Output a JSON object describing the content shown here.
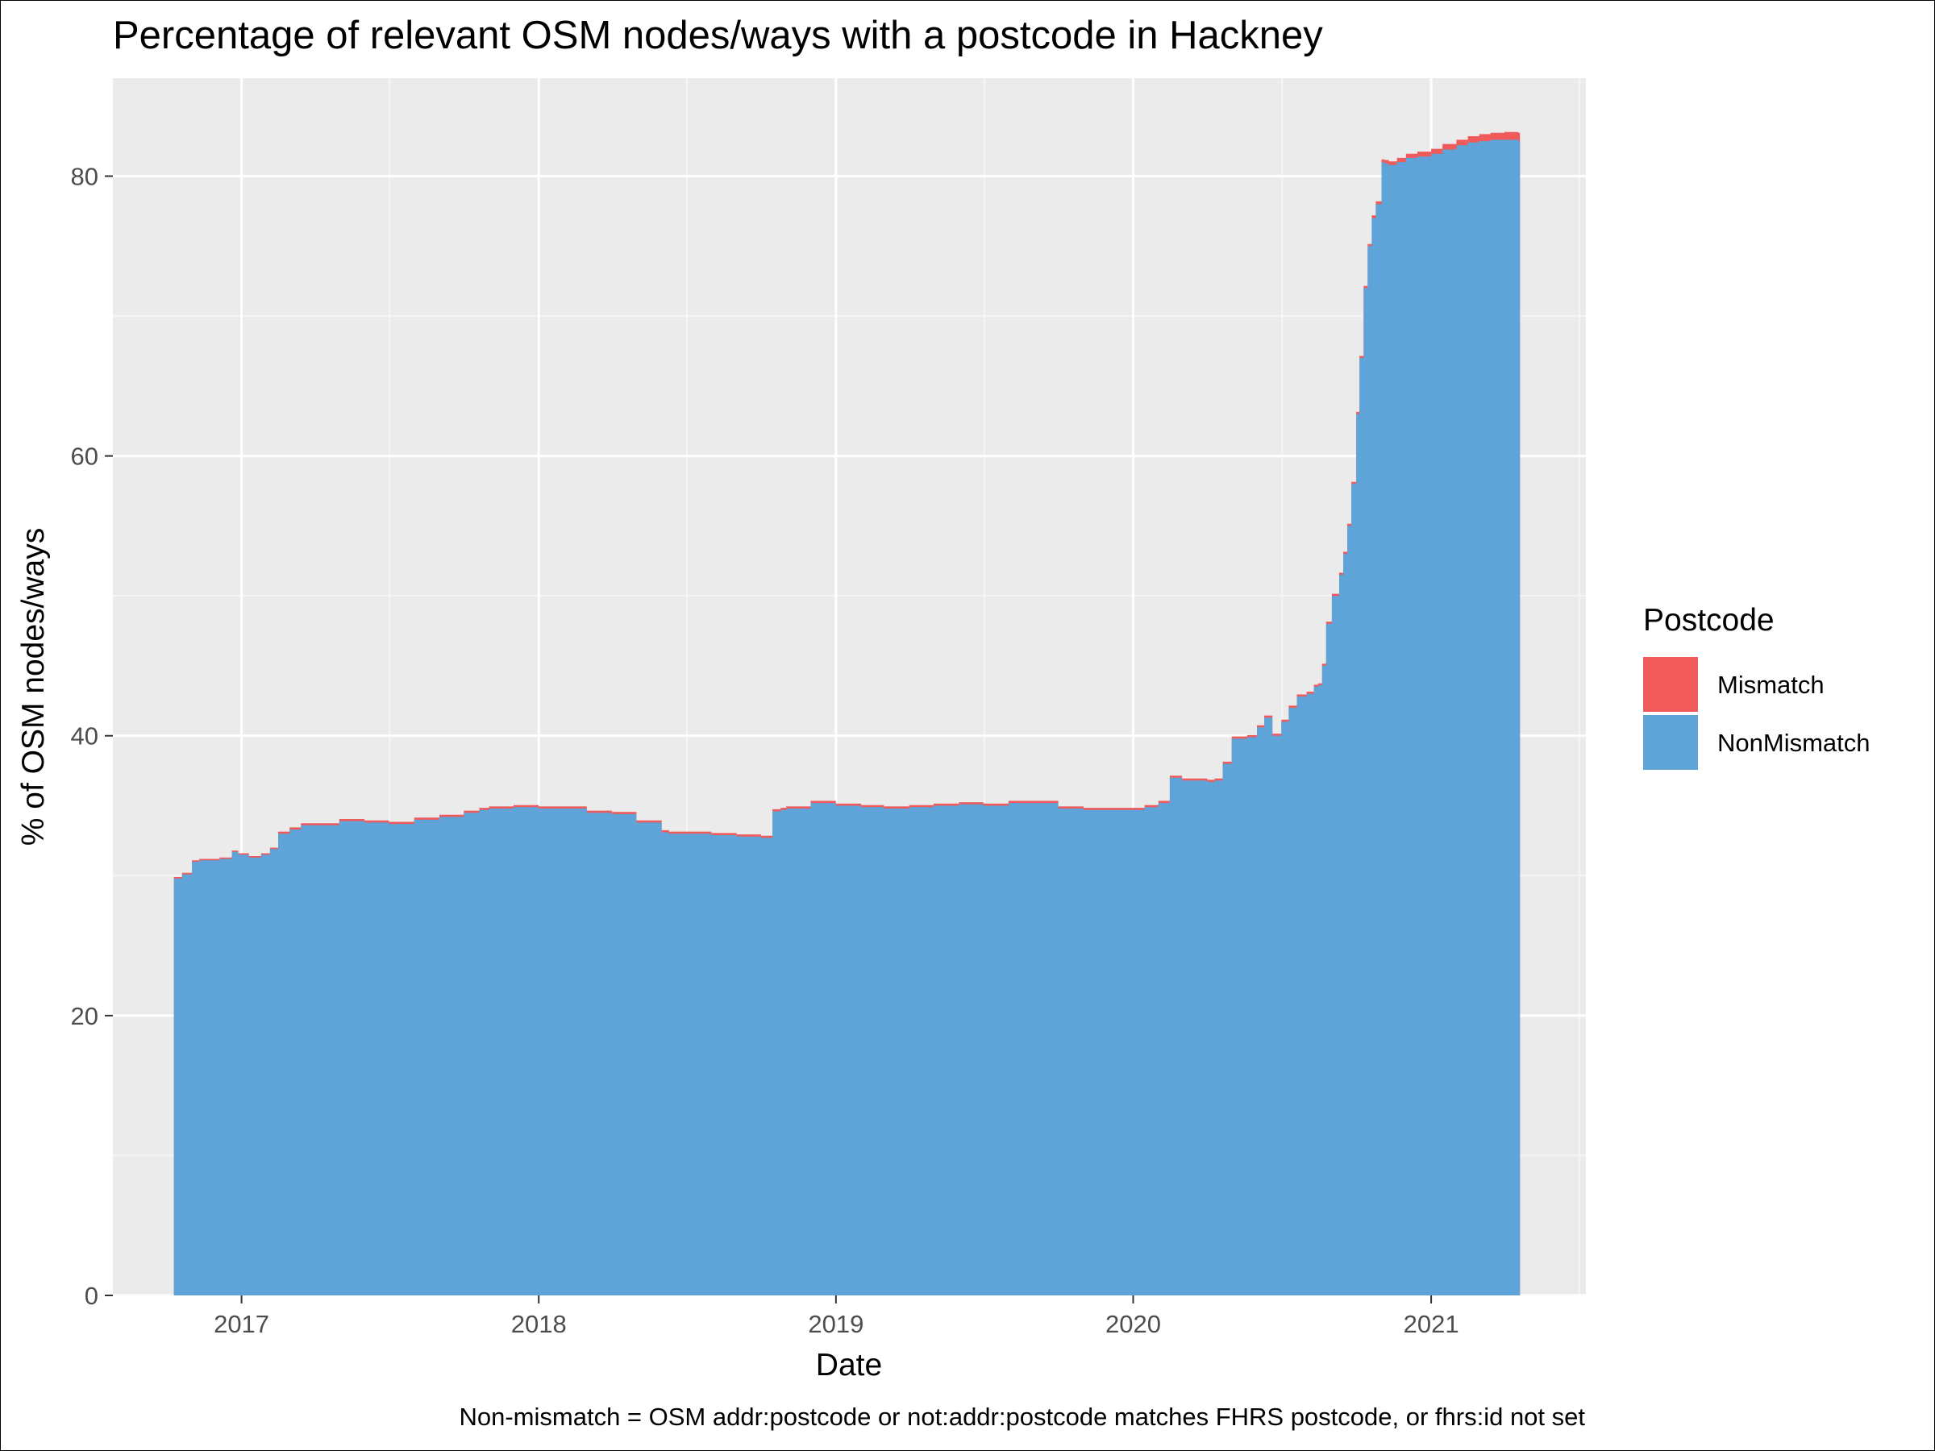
{
  "chart_data": {
    "type": "area",
    "title": "Percentage of relevant OSM nodes/ways with a postcode in Hackney",
    "xlabel": "Date",
    "ylabel": "% of OSM nodes/ways",
    "caption": "Non-mismatch = OSM addr:postcode or not:addr:postcode matches FHRS postcode, or fhrs:id not set",
    "x_ticks": [
      "2017",
      "2018",
      "2019",
      "2020",
      "2021"
    ],
    "y_ticks": [
      "0",
      "20",
      "40",
      "60",
      "80"
    ],
    "ylim": [
      0,
      87
    ],
    "xlim": [
      "2016-07-27",
      "2021-07-10"
    ],
    "stacked": true,
    "grid": true,
    "legend": {
      "title": "Postcode",
      "position": "right",
      "entries": [
        {
          "name": "Mismatch",
          "color": "#F05A5A"
        },
        {
          "name": "NonMismatch",
          "color": "#5EA4D9"
        }
      ]
    },
    "colors": {
      "panel": "#EBEBEB",
      "grid_major": "#FFFFFF",
      "grid_minor": "#F5F5F5",
      "Mismatch": "#F05A5A",
      "NonMismatch": "#5EA4D9"
    },
    "x": [
      "2016-10-10",
      "2016-10-20",
      "2016-11-01",
      "2016-11-10",
      "2016-11-20",
      "2016-12-05",
      "2016-12-20",
      "2016-12-28",
      "2017-01-10",
      "2017-01-25",
      "2017-02-05",
      "2017-02-15",
      "2017-03-01",
      "2017-03-15",
      "2017-04-01",
      "2017-05-01",
      "2017-06-01",
      "2017-07-01",
      "2017-08-01",
      "2017-09-01",
      "2017-10-01",
      "2017-10-20",
      "2017-11-01",
      "2017-12-01",
      "2018-01-01",
      "2018-02-01",
      "2018-03-01",
      "2018-04-01",
      "2018-05-01",
      "2018-06-01",
      "2018-06-10",
      "2018-07-01",
      "2018-08-01",
      "2018-09-01",
      "2018-10-01",
      "2018-10-15",
      "2018-10-25",
      "2018-11-01",
      "2018-12-01",
      "2019-01-01",
      "2019-02-01",
      "2019-03-01",
      "2019-04-01",
      "2019-05-01",
      "2019-06-01",
      "2019-07-01",
      "2019-08-01",
      "2019-09-01",
      "2019-10-01",
      "2019-11-01",
      "2019-12-01",
      "2020-01-01",
      "2020-01-15",
      "2020-02-01",
      "2020-02-15",
      "2020-03-01",
      "2020-04-01",
      "2020-04-10",
      "2020-04-20",
      "2020-05-01",
      "2020-05-20",
      "2020-06-01",
      "2020-06-10",
      "2020-06-20",
      "2020-07-01",
      "2020-07-10",
      "2020-07-20",
      "2020-08-01",
      "2020-08-10",
      "2020-08-15",
      "2020-08-20",
      "2020-08-25",
      "2020-09-01",
      "2020-09-10",
      "2020-09-15",
      "2020-09-20",
      "2020-09-25",
      "2020-10-01",
      "2020-10-05",
      "2020-10-10",
      "2020-10-15",
      "2020-10-20",
      "2020-10-25",
      "2020-11-01",
      "2020-11-05",
      "2020-11-10",
      "2020-11-20",
      "2020-12-01",
      "2020-12-15",
      "2021-01-01",
      "2021-01-15",
      "2021-02-01",
      "2021-02-15",
      "2021-03-01",
      "2021-03-15",
      "2021-04-01",
      "2021-04-10",
      "2021-04-18"
    ],
    "series": [
      {
        "name": "NonMismatch",
        "values": [
          29.8,
          30.1,
          31.0,
          31.1,
          31.1,
          31.2,
          31.7,
          31.5,
          31.3,
          31.5,
          31.9,
          33.0,
          33.3,
          33.6,
          33.6,
          33.9,
          33.8,
          33.7,
          34.0,
          34.2,
          34.5,
          34.7,
          34.8,
          34.9,
          34.8,
          34.8,
          34.5,
          34.4,
          33.8,
          33.1,
          33.0,
          33.0,
          32.9,
          32.8,
          32.7,
          34.6,
          34.7,
          34.8,
          35.2,
          35.0,
          34.9,
          34.8,
          34.9,
          35.0,
          35.1,
          35.0,
          35.2,
          35.2,
          34.8,
          34.7,
          34.7,
          34.7,
          34.9,
          35.2,
          37.0,
          36.8,
          36.7,
          36.8,
          38.0,
          39.8,
          39.9,
          40.6,
          41.3,
          40.0,
          41.0,
          42.0,
          42.8,
          43.0,
          43.5,
          43.6,
          45.0,
          48.0,
          50.0,
          51.5,
          53.0,
          55.0,
          58.0,
          63.0,
          67.0,
          72.0,
          75.0,
          77.0,
          78.0,
          81.0,
          80.9,
          80.8,
          81.0,
          81.3,
          81.4,
          81.6,
          81.9,
          82.2,
          82.4,
          82.5,
          82.6,
          82.6,
          82.6,
          82.5
        ]
      },
      {
        "name": "Mismatch",
        "values": [
          0.1,
          0.1,
          0.1,
          0.1,
          0.1,
          0.1,
          0.1,
          0.1,
          0.1,
          0.1,
          0.1,
          0.15,
          0.15,
          0.15,
          0.15,
          0.15,
          0.15,
          0.15,
          0.15,
          0.15,
          0.15,
          0.15,
          0.15,
          0.15,
          0.15,
          0.15,
          0.15,
          0.15,
          0.15,
          0.15,
          0.15,
          0.15,
          0.15,
          0.15,
          0.15,
          0.15,
          0.15,
          0.15,
          0.15,
          0.15,
          0.15,
          0.15,
          0.15,
          0.15,
          0.15,
          0.15,
          0.15,
          0.15,
          0.15,
          0.15,
          0.15,
          0.15,
          0.15,
          0.15,
          0.15,
          0.15,
          0.15,
          0.15,
          0.15,
          0.15,
          0.15,
          0.15,
          0.15,
          0.15,
          0.15,
          0.15,
          0.15,
          0.15,
          0.15,
          0.15,
          0.15,
          0.15,
          0.15,
          0.15,
          0.15,
          0.15,
          0.15,
          0.15,
          0.15,
          0.15,
          0.15,
          0.2,
          0.2,
          0.2,
          0.25,
          0.25,
          0.3,
          0.3,
          0.35,
          0.35,
          0.4,
          0.4,
          0.45,
          0.5,
          0.5,
          0.55,
          0.55,
          0.6
        ]
      }
    ]
  }
}
